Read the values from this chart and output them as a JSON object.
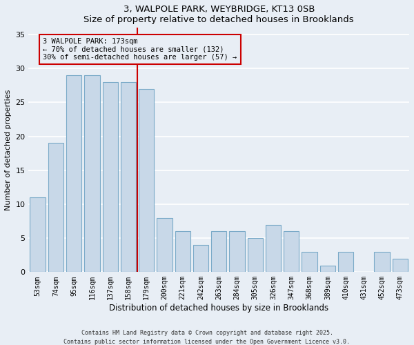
{
  "title1": "3, WALPOLE PARK, WEYBRIDGE, KT13 0SB",
  "title2": "Size of property relative to detached houses in Brooklands",
  "xlabel": "Distribution of detached houses by size in Brooklands",
  "ylabel": "Number of detached properties",
  "categories": [
    "53sqm",
    "74sqm",
    "95sqm",
    "116sqm",
    "137sqm",
    "158sqm",
    "179sqm",
    "200sqm",
    "221sqm",
    "242sqm",
    "263sqm",
    "284sqm",
    "305sqm",
    "326sqm",
    "347sqm",
    "368sqm",
    "389sqm",
    "410sqm",
    "431sqm",
    "452sqm",
    "473sqm"
  ],
  "values": [
    11,
    19,
    29,
    29,
    28,
    28,
    27,
    8,
    6,
    4,
    6,
    6,
    5,
    7,
    6,
    3,
    1,
    3,
    0,
    3,
    2
  ],
  "bar_color": "#c8d8e8",
  "bar_edge_color": "#7aaac8",
  "background_color": "#e8eef5",
  "grid_color": "#ffffff",
  "vline_color": "#cc0000",
  "annotation_text": "3 WALPOLE PARK: 173sqm\n← 70% of detached houses are smaller (132)\n30% of semi-detached houses are larger (57) →",
  "annotation_box_color": "#cc0000",
  "ylim": [
    0,
    36
  ],
  "yticks": [
    0,
    5,
    10,
    15,
    20,
    25,
    30,
    35
  ],
  "footer1": "Contains HM Land Registry data © Crown copyright and database right 2025.",
  "footer2": "Contains public sector information licensed under the Open Government Licence v3.0."
}
